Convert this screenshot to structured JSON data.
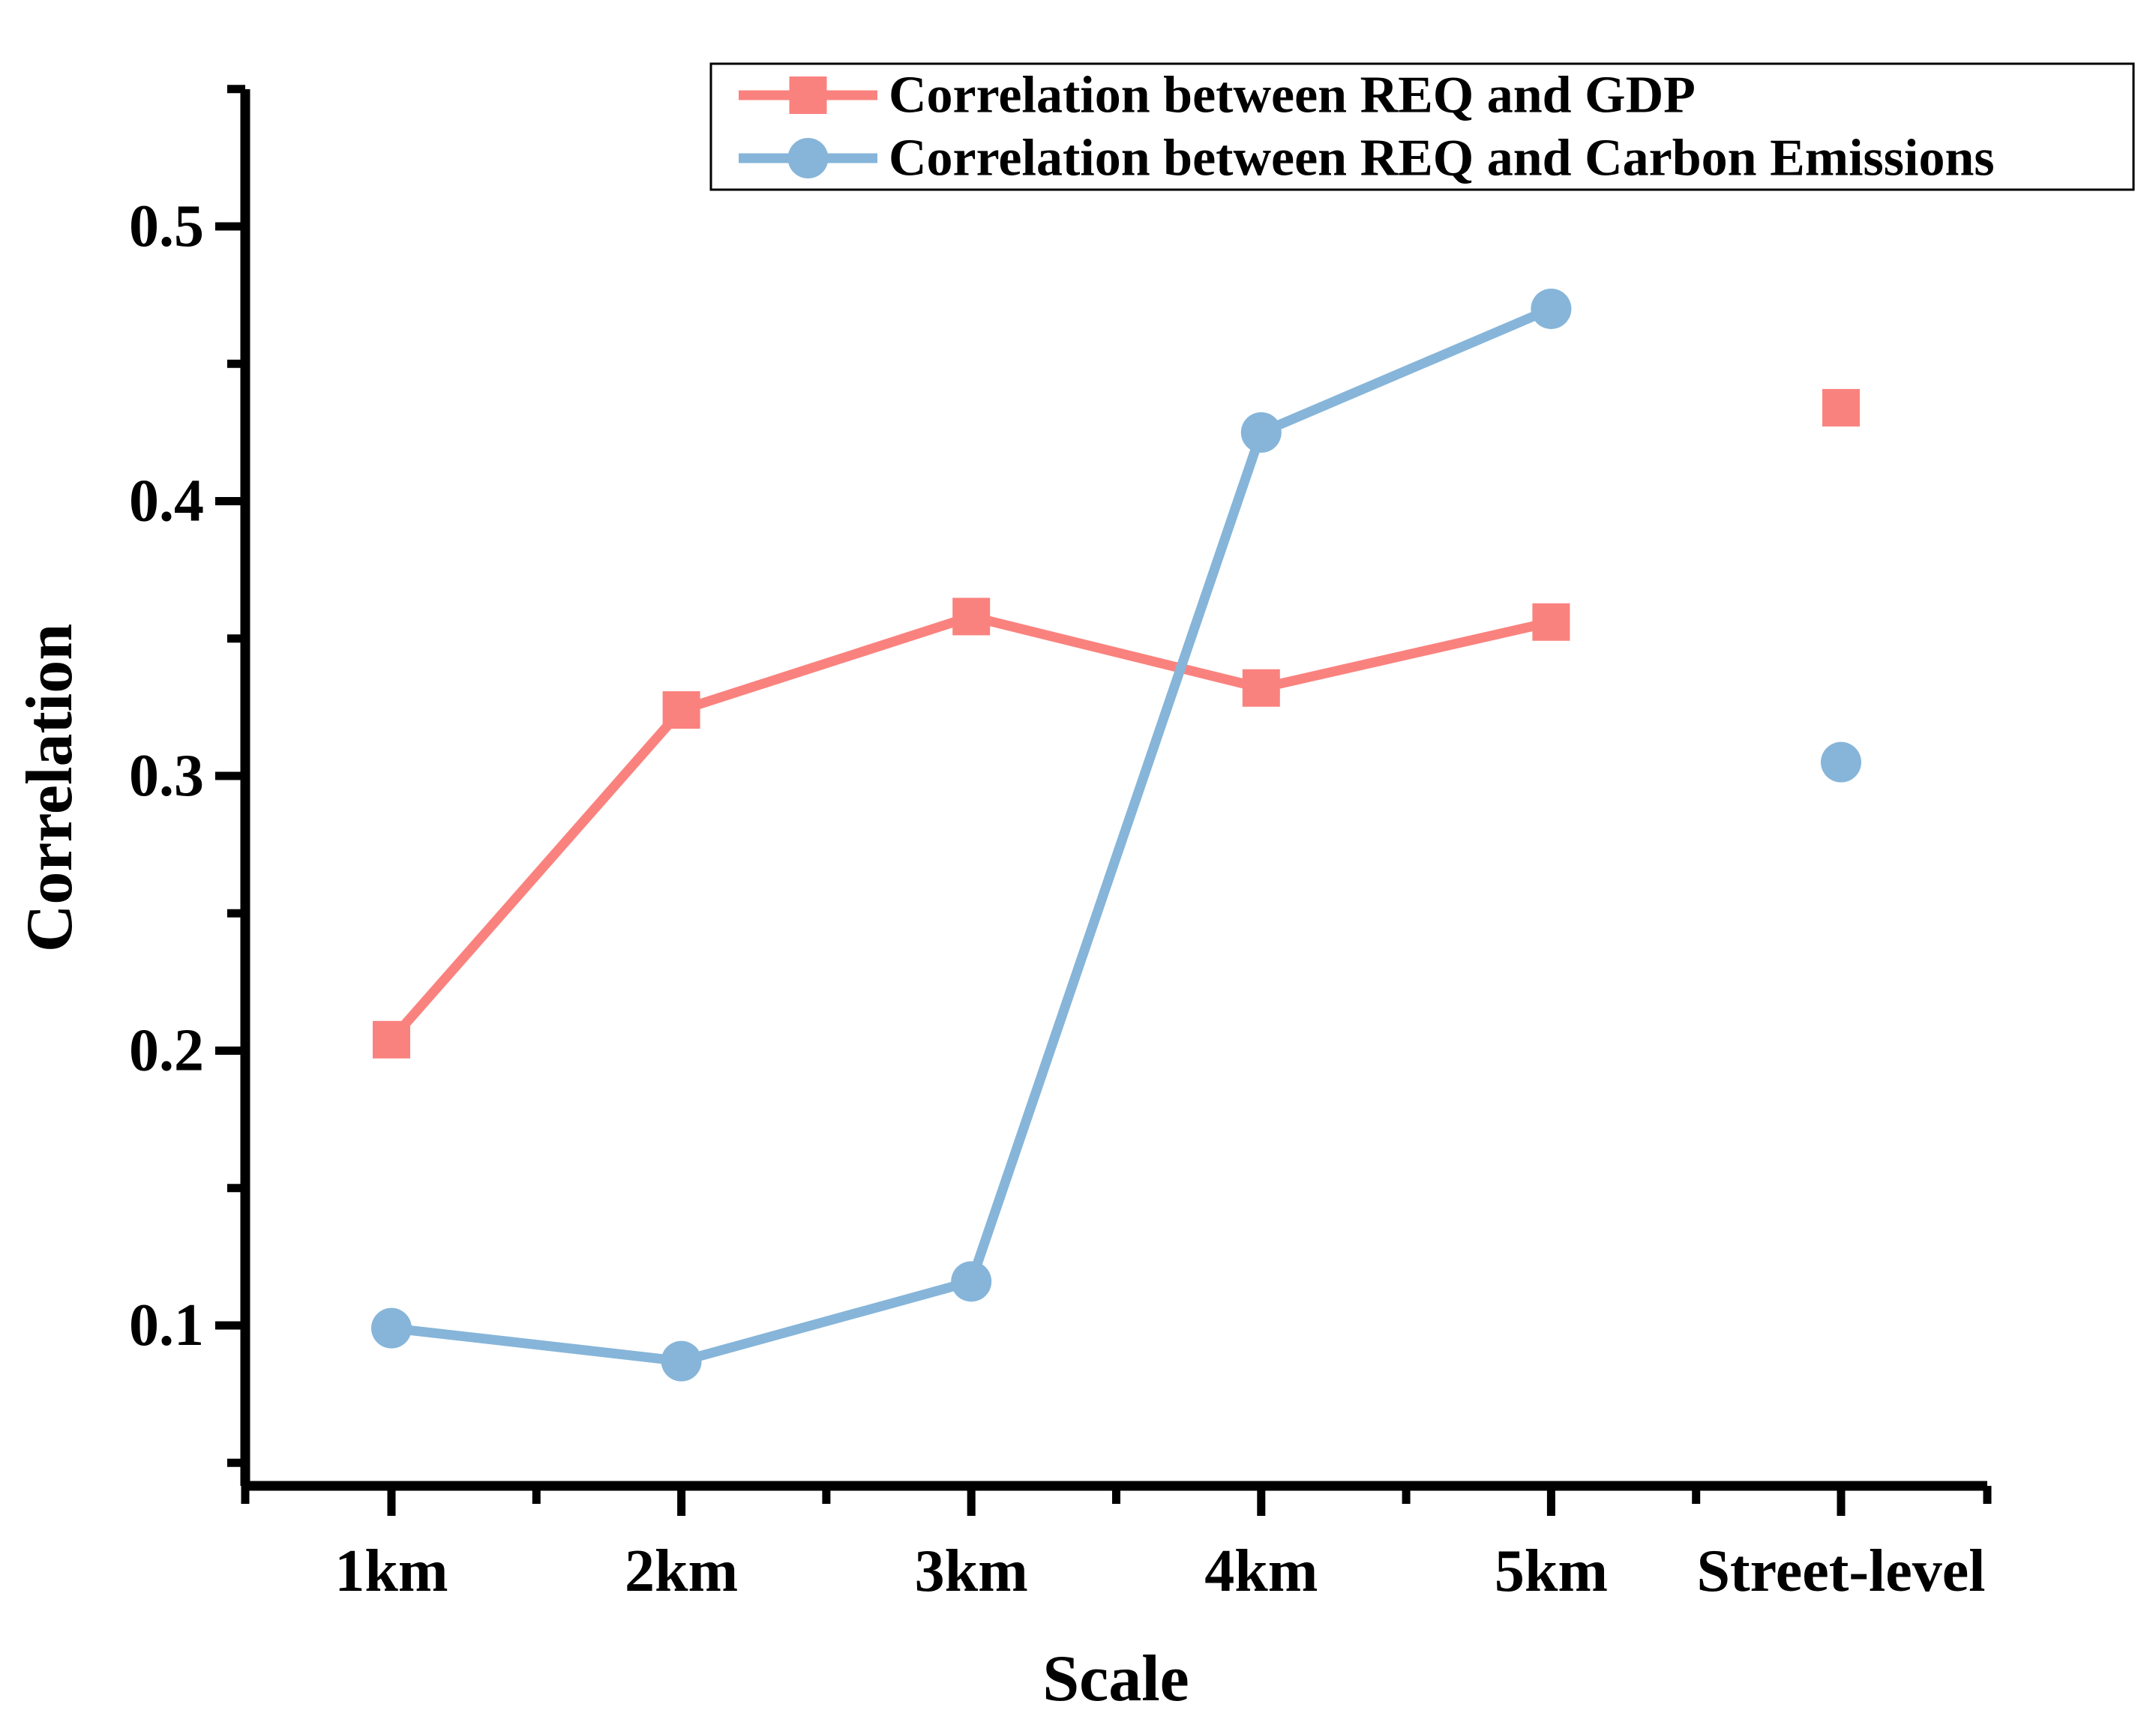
{
  "chart_data": {
    "type": "line",
    "title": "",
    "xlabel": "Scale",
    "ylabel": "Correlation",
    "categories": [
      "1km",
      "2km",
      "3km",
      "4km",
      "5km",
      "Street-level"
    ],
    "series": [
      {
        "name": "Correlation between REQ and GDP",
        "color": "#FA827E",
        "marker": "square",
        "values": [
          0.204,
          0.324,
          0.358,
          0.332,
          0.356,
          0.434
        ],
        "street_level_point_connected": false
      },
      {
        "name": "Correlation between REQ and Carbon Emissions",
        "color": "#86B5D9",
        "marker": "circle",
        "values": [
          0.099,
          0.087,
          0.116,
          0.425,
          0.47,
          0.305
        ],
        "street_level_point_connected": false
      }
    ],
    "ytick_values": [
      0.5,
      0.4,
      0.3,
      0.2,
      0.1
    ],
    "ytick_labels": [
      "0.5",
      "0.4",
      "0.3",
      "0.2",
      "0.1"
    ],
    "ylim": [
      0.04,
      0.55
    ],
    "minor_tick_step": 0.05,
    "grid": false,
    "legend_position": "top-inside-border",
    "tick_direction": "out",
    "axis_color": "#000000",
    "text_color": "#000000",
    "background": "#FFFFFF"
  }
}
